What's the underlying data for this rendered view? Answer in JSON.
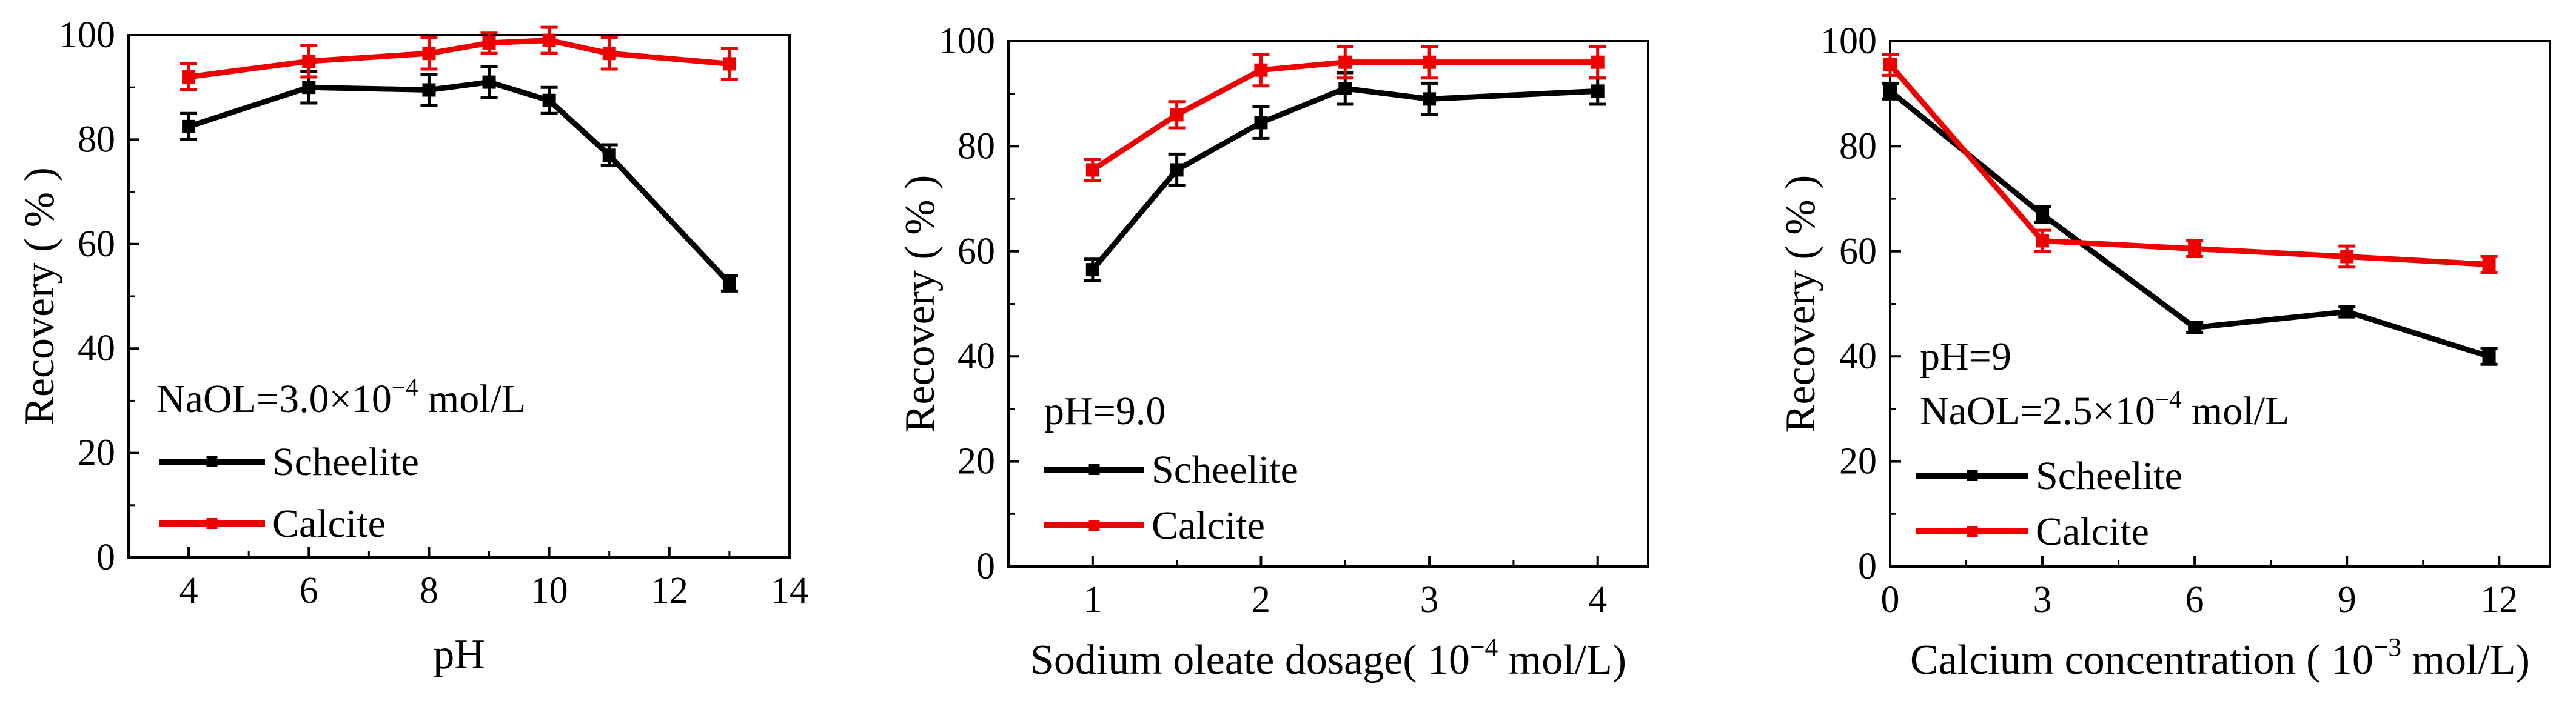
{
  "colors": {
    "scheelite": "#000000",
    "calcite": "#ee0000",
    "axis": "#000000"
  },
  "chart_data": [
    {
      "type": "line",
      "panel": "ph",
      "xlabel": "pH",
      "ylabel": "Recovery ( % )",
      "xlim": [
        3,
        14
      ],
      "ylim": [
        0,
        100
      ],
      "xticks": [
        4,
        6,
        8,
        10,
        12,
        14
      ],
      "yticks": [
        0,
        20,
        40,
        60,
        80,
        100
      ],
      "annotations": [
        {
          "parts": [
            "NaOL=3.0×10",
            "−4",
            " mol/L"
          ],
          "pos": "upper-left-text"
        }
      ],
      "legend": {
        "placement": "lower-left",
        "entries": [
          "Scheelite",
          "Calcite"
        ]
      },
      "series": [
        {
          "name": "Scheelite",
          "color": "#000000",
          "x": [
            4,
            6,
            8,
            9,
            10,
            11,
            13
          ],
          "y": [
            82.5,
            90,
            89.5,
            91,
            87.5,
            77,
            52.5
          ],
          "err": [
            2.5,
            3,
            3,
            3,
            2.5,
            2,
            1.5
          ]
        },
        {
          "name": "Calcite",
          "color": "#ee0000",
          "x": [
            4,
            6,
            8,
            9,
            10,
            11,
            13
          ],
          "y": [
            92,
            95,
            96.5,
            98.5,
            99,
            96.5,
            94.5
          ],
          "err": [
            2.5,
            3,
            3,
            2,
            2.5,
            3,
            3
          ]
        }
      ]
    },
    {
      "type": "line",
      "panel": "dosage",
      "xlabel": "Sodium oleate dosage( 10",
      "xlabel_sup": "−4",
      "xlabel_tail": " mol/L)",
      "ylabel": "Recovery ( % )",
      "xlim": [
        0.5,
        4.3
      ],
      "ylim": [
        0,
        100
      ],
      "xticks": [
        1,
        2,
        3,
        4
      ],
      "yticks": [
        0,
        20,
        40,
        60,
        80,
        100
      ],
      "annotations": [
        {
          "parts": [
            "pH=9.0"
          ],
          "pos": "text"
        }
      ],
      "legend": {
        "placement": "lower-left",
        "entries": [
          "Scheelite",
          "Calcite"
        ]
      },
      "series": [
        {
          "name": "Scheelite",
          "color": "#000000",
          "x": [
            1,
            1.5,
            2,
            2.5,
            3,
            4
          ],
          "y": [
            56.5,
            75.5,
            84.5,
            91,
            89,
            90.5
          ],
          "err": [
            2,
            3,
            3,
            3,
            3,
            2.5
          ]
        },
        {
          "name": "Calcite",
          "color": "#ee0000",
          "x": [
            1,
            1.5,
            2,
            2.5,
            3,
            4
          ],
          "y": [
            75.5,
            86,
            94.5,
            96,
            96,
            96
          ],
          "err": [
            2,
            2.5,
            3,
            3,
            3,
            3
          ]
        }
      ]
    },
    {
      "type": "line",
      "panel": "calcium",
      "xlabel": "Calcium concentration ( 10",
      "xlabel_sup": "−3",
      "xlabel_tail": " mol/L)",
      "ylabel": "Recovery ( % )",
      "xlim": [
        0,
        13
      ],
      "ylim": [
        0,
        100
      ],
      "xticks": [
        0,
        3,
        6,
        9,
        12
      ],
      "yticks": [
        0,
        20,
        40,
        60,
        80,
        100
      ],
      "annotations": [
        {
          "parts": [
            "pH=9"
          ],
          "pos": "text"
        },
        {
          "parts": [
            "NaOL=2.5×10",
            "−4",
            " mol/L"
          ],
          "pos": "text"
        }
      ],
      "legend": {
        "placement": "lower-left",
        "entries": [
          "Scheelite",
          "Calcite"
        ]
      },
      "series": [
        {
          "name": "Scheelite",
          "color": "#000000",
          "x": [
            0,
            3,
            6,
            9,
            11.8
          ],
          "y": [
            90.5,
            67,
            45.5,
            48.5,
            40
          ],
          "err": [
            1.5,
            1.5,
            1,
            1,
            1.5
          ]
        },
        {
          "name": "Calcite",
          "color": "#ee0000",
          "x": [
            0,
            3,
            6,
            9,
            11.8
          ],
          "y": [
            95.5,
            62,
            60.5,
            59,
            57.5
          ],
          "err": [
            2,
            2,
            1.5,
            2,
            1.5
          ]
        }
      ]
    }
  ]
}
